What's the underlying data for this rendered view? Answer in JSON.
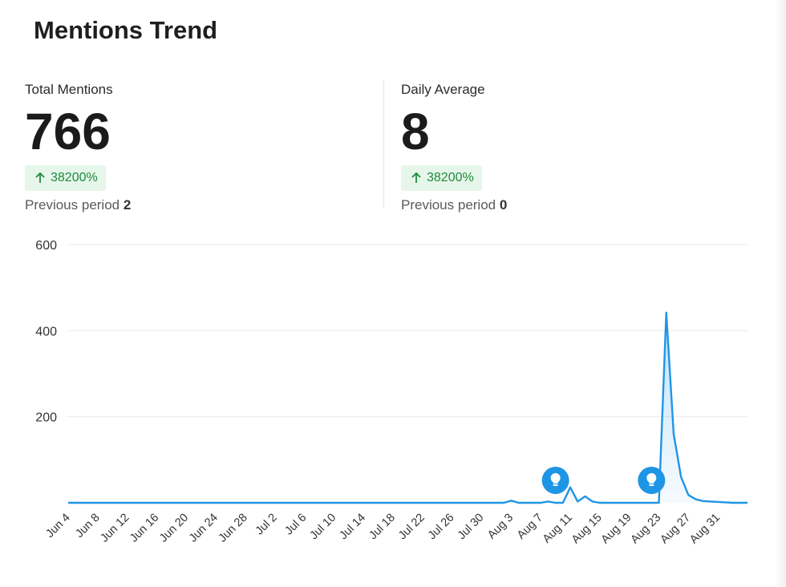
{
  "page": {
    "title": "Mentions Trend"
  },
  "kpis": [
    {
      "label": "Total Mentions",
      "value": "766",
      "change": "38200%",
      "change_direction": "up",
      "previous_label": "Previous period",
      "previous_value": "2"
    },
    {
      "label": "Daily Average",
      "value": "8",
      "change": "38200%",
      "change_direction": "up",
      "previous_label": "Previous period",
      "previous_value": "0"
    }
  ],
  "colors": {
    "accent": "#1f95e6",
    "badge_bg": "#e6f6ea",
    "badge_text": "#1f8a3e",
    "grid": "#ebebeb"
  },
  "chart_data": {
    "type": "area",
    "title": "",
    "xlabel": "",
    "ylabel": "",
    "ylim": [
      0,
      600
    ],
    "yticks": [
      200,
      400,
      600
    ],
    "grid": true,
    "x_start": "2024-06-04",
    "x_tick_labels": [
      "Jun 4",
      "Jun 8",
      "Jun 12",
      "Jun 16",
      "Jun 20",
      "Jun 24",
      "Jun 28",
      "Jul 2",
      "Jul 6",
      "Jul 10",
      "Jul 14",
      "Jul 18",
      "Jul 22",
      "Jul 26",
      "Jul 30",
      "Aug 3",
      "Aug 7",
      "Aug 11",
      "Aug 15",
      "Aug 19",
      "Aug 23",
      "Aug 27",
      "Aug 31"
    ],
    "series": [
      {
        "name": "Mentions",
        "values": [
          0,
          0,
          0,
          0,
          0,
          0,
          0,
          0,
          0,
          0,
          0,
          0,
          0,
          0,
          0,
          0,
          0,
          0,
          0,
          0,
          0,
          0,
          0,
          0,
          0,
          0,
          0,
          0,
          0,
          0,
          0,
          0,
          0,
          0,
          0,
          0,
          0,
          0,
          0,
          0,
          0,
          0,
          0,
          0,
          0,
          0,
          0,
          0,
          0,
          0,
          0,
          0,
          0,
          0,
          0,
          0,
          0,
          0,
          0,
          0,
          5,
          0,
          0,
          0,
          0,
          3,
          0,
          0,
          36,
          3,
          15,
          3,
          0,
          0,
          0,
          0,
          0,
          0,
          0,
          0,
          0,
          442,
          160,
          60,
          18,
          8,
          4,
          3,
          2,
          1,
          0,
          0,
          0
        ]
      }
    ],
    "annotations": [
      {
        "type": "insight-marker",
        "icon": "lightbulb-icon",
        "date": "Aug 9"
      },
      {
        "type": "insight-marker",
        "icon": "lightbulb-icon",
        "date": "Aug 22"
      }
    ]
  }
}
